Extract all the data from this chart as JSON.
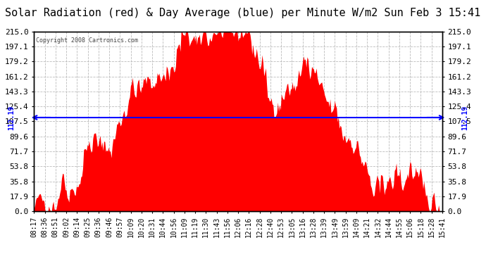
{
  "title": "Solar Radiation (red) & Day Average (blue) per Minute W/m2 Sun Feb 3 15:41",
  "copyright": "Copyright 2008 Cartronics.com",
  "avg_value": 112.19,
  "avg_label": "112.19",
  "ymin": 0.0,
  "ymax": 215.0,
  "yticks": [
    0.0,
    17.9,
    35.8,
    53.8,
    71.7,
    89.6,
    107.5,
    125.4,
    143.3,
    161.2,
    179.2,
    197.1,
    215.0
  ],
  "xtick_labels": [
    "08:17",
    "08:36",
    "08:51",
    "09:02",
    "09:14",
    "09:25",
    "09:36",
    "09:46",
    "09:57",
    "10:09",
    "10:20",
    "10:31",
    "10:44",
    "10:56",
    "11:09",
    "11:19",
    "11:30",
    "11:43",
    "11:56",
    "12:06",
    "12:16",
    "12:28",
    "12:40",
    "12:53",
    "13:05",
    "13:16",
    "13:28",
    "13:39",
    "13:49",
    "13:59",
    "14:09",
    "14:21",
    "14:32",
    "14:44",
    "14:55",
    "15:06",
    "15:18",
    "15:28",
    "15:41"
  ],
  "bg_color": "#ffffff",
  "fill_color": "#ff0000",
  "line_color": "#0000ff",
  "grid_color": "#bbbbbb",
  "title_fontsize": 11,
  "axis_fontsize": 8
}
